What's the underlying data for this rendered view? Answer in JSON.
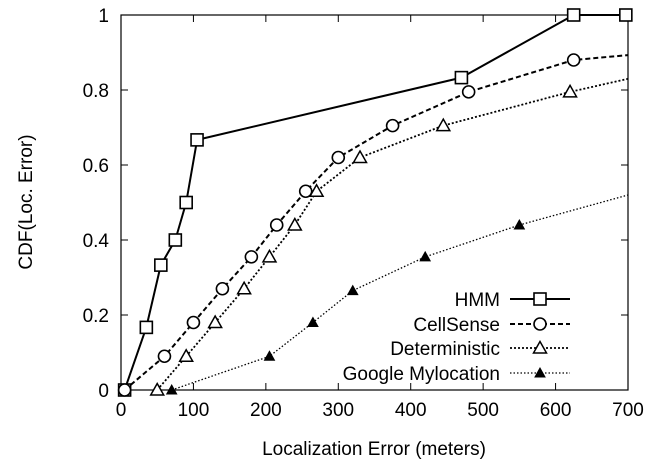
{
  "chart_data": {
    "type": "line",
    "xlabel": "Localization Error (meters)",
    "ylabel": "CDF(Loc. Error)",
    "xlim": [
      0,
      700
    ],
    "ylim": [
      0,
      1
    ],
    "xticks": [
      0,
      100,
      200,
      300,
      400,
      500,
      600,
      700
    ],
    "yticks": [
      0,
      0.2,
      0.4,
      0.6,
      0.8,
      1
    ],
    "xtick_labels": [
      "0",
      "100",
      "200",
      "300",
      "400",
      "500",
      "600",
      "700"
    ],
    "ytick_labels": [
      "0",
      "0.2",
      "0.4",
      "0.6",
      "0.8",
      "1"
    ],
    "grid": false,
    "legend_position": "bottom-right",
    "series": [
      {
        "name": "HMM",
        "line_style": "solid",
        "marker": "square-open",
        "x": [
          5,
          35,
          55,
          75,
          90,
          105,
          470,
          625,
          697
        ],
        "y": [
          0.0,
          0.167,
          0.333,
          0.4,
          0.5,
          0.667,
          0.833,
          1.0,
          1.0
        ],
        "markers_x": [
          5,
          35,
          55,
          75,
          90,
          105,
          470,
          625,
          697
        ],
        "markers_y": [
          0.0,
          0.167,
          0.333,
          0.4,
          0.5,
          0.667,
          0.833,
          1.0,
          1.0
        ]
      },
      {
        "name": "CellSense",
        "line_style": "dashed",
        "marker": "circle-open",
        "x": [
          5,
          60,
          100,
          140,
          180,
          215,
          255,
          300,
          375,
          480,
          625,
          700
        ],
        "y": [
          0.0,
          0.09,
          0.18,
          0.27,
          0.355,
          0.44,
          0.53,
          0.62,
          0.705,
          0.795,
          0.88,
          0.893
        ],
        "markers_x": [
          5,
          60,
          100,
          140,
          180,
          215,
          255,
          300,
          375,
          480,
          625
        ],
        "markers_y": [
          0.0,
          0.09,
          0.18,
          0.27,
          0.355,
          0.44,
          0.53,
          0.62,
          0.705,
          0.795,
          0.88
        ]
      },
      {
        "name": "Deterministic",
        "line_style": "dotted",
        "marker": "triangle-open",
        "x": [
          50,
          90,
          130,
          170,
          205,
          240,
          270,
          330,
          445,
          620,
          700
        ],
        "y": [
          0.0,
          0.09,
          0.18,
          0.27,
          0.355,
          0.44,
          0.53,
          0.62,
          0.705,
          0.795,
          0.83
        ],
        "markers_x": [
          50,
          90,
          130,
          170,
          205,
          240,
          270,
          330,
          445,
          620
        ],
        "markers_y": [
          0.0,
          0.09,
          0.18,
          0.27,
          0.355,
          0.44,
          0.53,
          0.62,
          0.705,
          0.795
        ]
      },
      {
        "name": "Google Mylocation",
        "line_style": "dotted-fine",
        "marker": "triangle-filled",
        "x": [
          70,
          205,
          265,
          320,
          420,
          550,
          700
        ],
        "y": [
          0.0,
          0.09,
          0.18,
          0.265,
          0.355,
          0.44,
          0.52
        ],
        "markers_x": [
          70,
          205,
          265,
          320,
          420,
          550
        ],
        "markers_y": [
          0.0,
          0.09,
          0.18,
          0.265,
          0.355,
          0.44
        ]
      }
    ]
  }
}
